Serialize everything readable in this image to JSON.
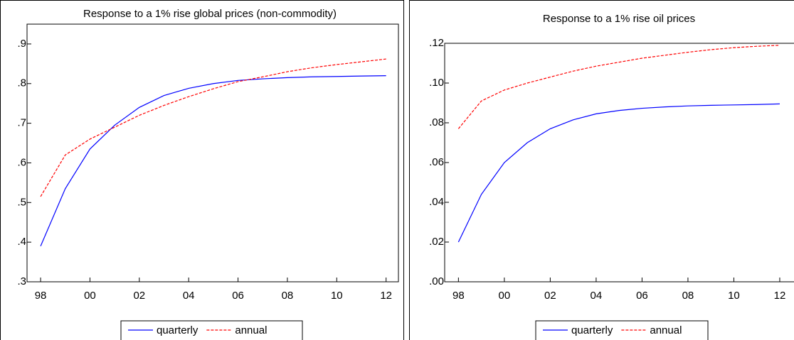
{
  "chart_data": [
    {
      "type": "line",
      "title": "Response to a 1% rise global prices (non-commodity)",
      "x": [
        1998,
        1999,
        2000,
        2001,
        2002,
        2003,
        2004,
        2005,
        2006,
        2007,
        2008,
        2009,
        2010,
        2011,
        2012
      ],
      "series": [
        {
          "name": "quarterly",
          "color": "#0000ff",
          "dash": false,
          "values": [
            0.39,
            0.535,
            0.635,
            0.695,
            0.74,
            0.77,
            0.788,
            0.8,
            0.808,
            0.812,
            0.815,
            0.817,
            0.818,
            0.819,
            0.82
          ]
        },
        {
          "name": "annual",
          "color": "#ff0000",
          "dash": true,
          "values": [
            0.515,
            0.62,
            0.66,
            0.69,
            0.72,
            0.745,
            0.767,
            0.787,
            0.805,
            0.817,
            0.83,
            0.84,
            0.848,
            0.855,
            0.862
          ]
        }
      ],
      "xlim": [
        1997.45,
        2012.5
      ],
      "xticks": [
        {
          "value": 1998,
          "label": "98"
        },
        {
          "value": 2000,
          "label": "00"
        },
        {
          "value": 2002,
          "label": "02"
        },
        {
          "value": 2004,
          "label": "04"
        },
        {
          "value": 2006,
          "label": "06"
        },
        {
          "value": 2008,
          "label": "08"
        },
        {
          "value": 2010,
          "label": "10"
        },
        {
          "value": 2012,
          "label": "12"
        }
      ],
      "ylim": [
        0.3,
        0.95
      ],
      "yticks": [
        {
          "value": 0.3,
          "label": ".3"
        },
        {
          "value": 0.4,
          "label": ".4"
        },
        {
          "value": 0.5,
          "label": ".5"
        },
        {
          "value": 0.6,
          "label": ".6"
        },
        {
          "value": 0.7,
          "label": ".7"
        },
        {
          "value": 0.8,
          "label": ".8"
        },
        {
          "value": 0.9,
          "label": ".9"
        }
      ],
      "legend": "bottom"
    },
    {
      "type": "line",
      "title": "Response to a 1% rise oil prices",
      "x": [
        1998,
        1999,
        2000,
        2001,
        2002,
        2003,
        2004,
        2005,
        2006,
        2007,
        2008,
        2009,
        2010,
        2011,
        2012
      ],
      "series": [
        {
          "name": "quarterly",
          "color": "#0000ff",
          "dash": false,
          "values": [
            0.02,
            0.044,
            0.06,
            0.07,
            0.077,
            0.0815,
            0.0845,
            0.0862,
            0.0873,
            0.088,
            0.0885,
            0.0888,
            0.089,
            0.0892,
            0.0895
          ]
        },
        {
          "name": "annual",
          "color": "#ff0000",
          "dash": true,
          "values": [
            0.077,
            0.091,
            0.0965,
            0.1,
            0.103,
            0.106,
            0.1085,
            0.1105,
            0.1125,
            0.114,
            0.1155,
            0.1168,
            0.1178,
            0.1185,
            0.119
          ]
        }
      ],
      "xlim": [
        1997.4,
        2012.9
      ],
      "xticks": [
        {
          "value": 1998,
          "label": "98"
        },
        {
          "value": 2000,
          "label": "00"
        },
        {
          "value": 2002,
          "label": "02"
        },
        {
          "value": 2004,
          "label": "04"
        },
        {
          "value": 2006,
          "label": "06"
        },
        {
          "value": 2008,
          "label": "08"
        },
        {
          "value": 2010,
          "label": "10"
        },
        {
          "value": 2012,
          "label": "12"
        }
      ],
      "ylim": [
        0,
        0.12
      ],
      "yticks": [
        {
          "value": 0,
          "label": ".00"
        },
        {
          "value": 0.02,
          "label": ".02"
        },
        {
          "value": 0.04,
          "label": ".04"
        },
        {
          "value": 0.06,
          "label": ".06"
        },
        {
          "value": 0.08,
          "label": ".08"
        },
        {
          "value": 0.1,
          "label": ".10"
        },
        {
          "value": 0.12,
          "label": ".12"
        }
      ],
      "legend": "bottom"
    }
  ]
}
